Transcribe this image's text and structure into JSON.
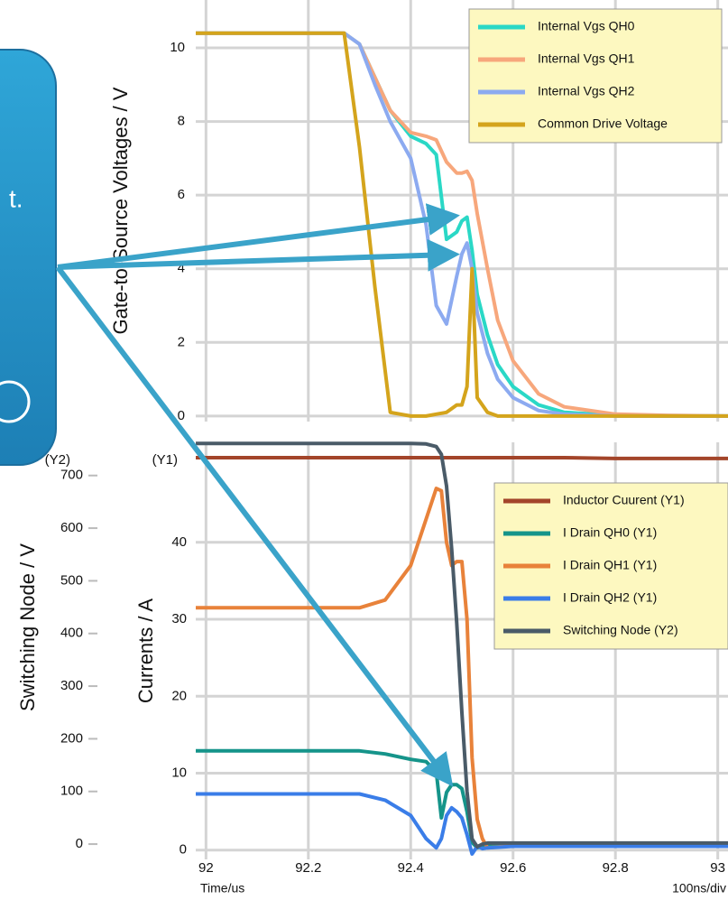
{
  "chart_data": [
    {
      "type": "line",
      "ylabel": "Gate-to-Source Voltages / V",
      "x": [
        91.98,
        92.0,
        92.1,
        92.2,
        92.27,
        92.3,
        92.33,
        92.36,
        92.4,
        92.43,
        92.45,
        92.47,
        92.49,
        92.5,
        92.51,
        92.52,
        92.53,
        92.55,
        92.57,
        92.6,
        92.65,
        92.7,
        92.8,
        92.9,
        93.02
      ],
      "series": [
        {
          "name": "Internal Vgs QH0",
          "color": "#2ad8c6",
          "values": [
            10.4,
            10.4,
            10.4,
            10.4,
            10.4,
            10.1,
            9.2,
            8.3,
            7.6,
            7.4,
            7.1,
            4.8,
            5.0,
            5.3,
            5.4,
            4.5,
            3.3,
            2.2,
            1.4,
            0.8,
            0.3,
            0.1,
            0.02,
            0,
            0
          ]
        },
        {
          "name": "Internal Vgs QH1",
          "color": "#f7a77c",
          "values": [
            10.4,
            10.4,
            10.4,
            10.4,
            10.4,
            10.1,
            9.2,
            8.3,
            7.7,
            7.6,
            7.5,
            6.9,
            6.6,
            6.6,
            6.65,
            6.4,
            5.5,
            4.0,
            2.6,
            1.5,
            0.6,
            0.25,
            0.05,
            0.02,
            0
          ]
        },
        {
          "name": "Internal Vgs QH2",
          "color": "#8caaf0",
          "values": [
            10.4,
            10.4,
            10.4,
            10.4,
            10.4,
            10.1,
            9.0,
            8.0,
            7.0,
            5.2,
            3.0,
            2.5,
            3.8,
            4.4,
            4.7,
            4.0,
            2.8,
            1.7,
            1.0,
            0.5,
            0.15,
            0.05,
            0,
            0,
            0
          ]
        },
        {
          "name": "Common Drive Voltage",
          "color": "#d4a41c",
          "values": [
            10.4,
            10.4,
            10.4,
            10.4,
            10.4,
            7.3,
            3.5,
            0.1,
            0,
            0,
            0.05,
            0.1,
            0.3,
            0.3,
            0.8,
            4.0,
            0.5,
            0.1,
            0,
            0,
            0,
            0,
            0,
            0,
            0
          ]
        }
      ],
      "xlim": [
        91.98,
        93.02
      ],
      "ylim": [
        -0.15,
        11.3
      ],
      "xticks": [
        92,
        92.2,
        92.4,
        92.6,
        92.8,
        93
      ],
      "xtick_labels": false,
      "yticks": [
        0,
        2,
        4,
        6,
        8,
        10
      ],
      "grid": true,
      "legend": "upper right"
    },
    {
      "type": "line",
      "ylabel": "Currents / A",
      "y2label": "Switching Node / V",
      "y_axis_note": "(Y1)",
      "y2_axis_note": "(Y2)",
      "xlabel": "Time/us",
      "x_scale_note": "100ns/div",
      "x": [
        91.98,
        92.0,
        92.1,
        92.2,
        92.3,
        92.35,
        92.4,
        92.43,
        92.45,
        92.46,
        92.47,
        92.48,
        92.49,
        92.5,
        92.51,
        92.52,
        92.53,
        92.54,
        92.55,
        92.6,
        92.7,
        92.8,
        92.9,
        93.02
      ],
      "series": [
        {
          "name": "Inductor Cuurent (Y1)",
          "color": "#a3452a",
          "values": [
            51,
            51,
            51,
            51,
            51,
            51,
            51,
            51,
            51,
            51,
            51,
            51,
            51,
            51,
            51,
            51,
            51,
            51,
            51,
            51,
            51,
            50.9,
            50.9,
            50.9
          ]
        },
        {
          "name": "I Drain QH0 (Y1)",
          "color": "#15948a",
          "values": [
            12.9,
            12.9,
            12.9,
            12.9,
            12.9,
            12.5,
            11.8,
            11.5,
            10.2,
            4.2,
            7.5,
            8.5,
            8.5,
            8.0,
            5.0,
            1.0,
            0.3,
            0.5,
            0.7,
            0.7,
            0.7,
            0.7,
            0.7,
            0.7
          ]
        },
        {
          "name": "I Drain QH1 (Y1)",
          "color": "#e8823a",
          "values": [
            31.5,
            31.5,
            31.5,
            31.5,
            31.5,
            32.5,
            37,
            43,
            47,
            46.7,
            40,
            37,
            37.5,
            37.5,
            30,
            12,
            4,
            1.5,
            0.3,
            0.6,
            0.6,
            0.6,
            0.6,
            0.6
          ]
        },
        {
          "name": "I Drain QH2 (Y1)",
          "color": "#3a7de8",
          "values": [
            7.3,
            7.3,
            7.3,
            7.3,
            7.3,
            6.5,
            4.5,
            1.5,
            0.3,
            1.5,
            4.5,
            5.5,
            5.0,
            4.2,
            2.0,
            -0.5,
            0.5,
            0.2,
            0.3,
            0.5,
            0.5,
            0.5,
            0.5,
            0.5
          ]
        },
        {
          "name": "Switching Node (Y2)",
          "color": "#4a5b68",
          "axis": "y2",
          "values": [
            761,
            761,
            761,
            761,
            761,
            761,
            761,
            760,
            755,
            740,
            680,
            560,
            420,
            250,
            100,
            10,
            -5,
            0,
            2,
            2,
            2,
            2,
            2,
            2
          ]
        }
      ],
      "xlim": [
        91.98,
        93.02
      ],
      "ylim": [
        -1.2,
        53
      ],
      "y2lim": [
        -29,
        763
      ],
      "xticks": [
        92,
        92.2,
        92.4,
        92.6,
        92.8,
        93
      ],
      "xtick_labels": true,
      "yticks": [
        0,
        10,
        20,
        30,
        40
      ],
      "y2ticks": [
        0,
        100,
        200,
        300,
        400,
        500,
        600,
        700
      ],
      "grid": true,
      "legend": "center right"
    }
  ],
  "callout": {
    "text": "t."
  }
}
